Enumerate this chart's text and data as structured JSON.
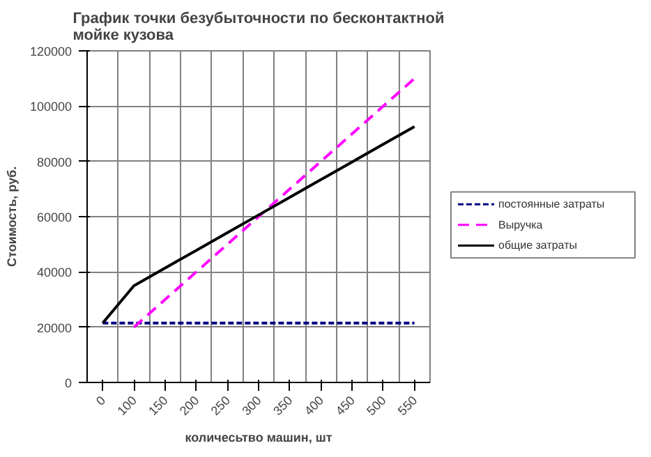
{
  "chart_data": {
    "type": "line",
    "title": "График точки безубыточности по бесконтактной мойке кузова",
    "xlabel": "количесьтво машин, шт",
    "ylabel": "Стоимость, руб.",
    "categories": [
      "0",
      "100",
      "150",
      "200",
      "250",
      "300",
      "350",
      "400",
      "450",
      "500",
      "550"
    ],
    "ylim": [
      0,
      120000
    ],
    "yticks": [
      0,
      20000,
      40000,
      60000,
      80000,
      100000,
      120000
    ],
    "grid": true,
    "legend": "right",
    "marker": "none",
    "series": [
      {
        "name": "постоянные затраты",
        "color": "#000080",
        "line_style": "dotted",
        "values": [
          21500,
          21500,
          21500,
          21500,
          21500,
          21500,
          21500,
          21500,
          21500,
          21500,
          21500
        ]
      },
      {
        "name": "Выручка",
        "color": "#ff00ff",
        "line_style": "dashed",
        "values": [
          null,
          20000,
          30000,
          40000,
          50000,
          60000,
          70000,
          80000,
          90000,
          100000,
          110000
        ]
      },
      {
        "name": "общие затраты",
        "color": "#000000",
        "line_style": "solid",
        "values": [
          21500,
          35000,
          41400,
          47800,
          54200,
          60600,
          67000,
          73400,
          79800,
          86200,
          92600
        ]
      }
    ]
  }
}
